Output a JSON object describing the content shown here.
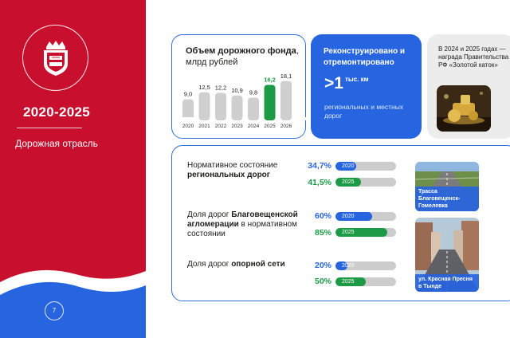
{
  "sidebar": {
    "period": "2020-2025",
    "sector": "Дорожная отрасль",
    "page_number": "7",
    "colors": {
      "red": "#c8102e",
      "blue": "#2764df",
      "white": "#ffffff"
    },
    "emblem_icon": "regional-coat-of-arms"
  },
  "road_fund": {
    "title_bold": "Объем дорожного фонда",
    "title_rest": ", млрд рублей",
    "chart_data": {
      "type": "bar",
      "categories": [
        "2020",
        "2021",
        "2022",
        "2023",
        "2024",
        "2025",
        "2026"
      ],
      "values": [
        9.0,
        12.5,
        12.2,
        10.9,
        9.8,
        16.2,
        18.1
      ],
      "value_labels": [
        "9,0",
        "12,5",
        "12,2",
        "10,9",
        "9,8",
        "16,2",
        "18,1"
      ],
      "highlight_category": "2025",
      "highlight_color": "#1c9a45",
      "bar_color": "#cfcfcf",
      "ylim": [
        0,
        20
      ]
    }
  },
  "reconstruction": {
    "title": "Реконструировано и отремонтировано",
    "big_value": ">1",
    "unit": "тыс. км",
    "description": "региональных и местных дорог"
  },
  "award": {
    "text": "В 2024 и 2025 годах — награда Правительства РФ «Золотой каток»",
    "photo_icon": "golden-roller-trophy-photo"
  },
  "normative": {
    "metrics": [
      {
        "label_plain": "Нормативное состояние",
        "label_bold": "региональных дорог",
        "rows": [
          {
            "year": "2020",
            "value_text": "34,7%",
            "value": 0.347
          },
          {
            "year": "2025",
            "value_text": "41,5%",
            "value": 0.415
          }
        ]
      },
      {
        "label_line1_plain": "Доля дорог ",
        "label_line1_bold": "Благовещенской",
        "label_line2_bold": "агломерации",
        "label_line2_plain": " в нормативном",
        "label_line3_plain": "состоянии",
        "rows": [
          {
            "year": "2020",
            "value_text": "60%",
            "value": 0.6
          },
          {
            "year": "2025",
            "value_text": "85%",
            "value": 0.85
          }
        ]
      },
      {
        "label_plain": "Доля дорог ",
        "label_bold": "опорной сети",
        "rows": [
          {
            "year": "2020",
            "value_text": "20%",
            "value": 0.2
          },
          {
            "year": "2025",
            "value_text": "50%",
            "value": 0.5
          }
        ]
      }
    ],
    "photos": [
      {
        "caption": "Трасса Благовещенск-Гомелевка",
        "icon": "highway-photo"
      },
      {
        "caption": "ул. Красная Пресня в Тынде",
        "icon": "city-street-photo"
      }
    ]
  }
}
